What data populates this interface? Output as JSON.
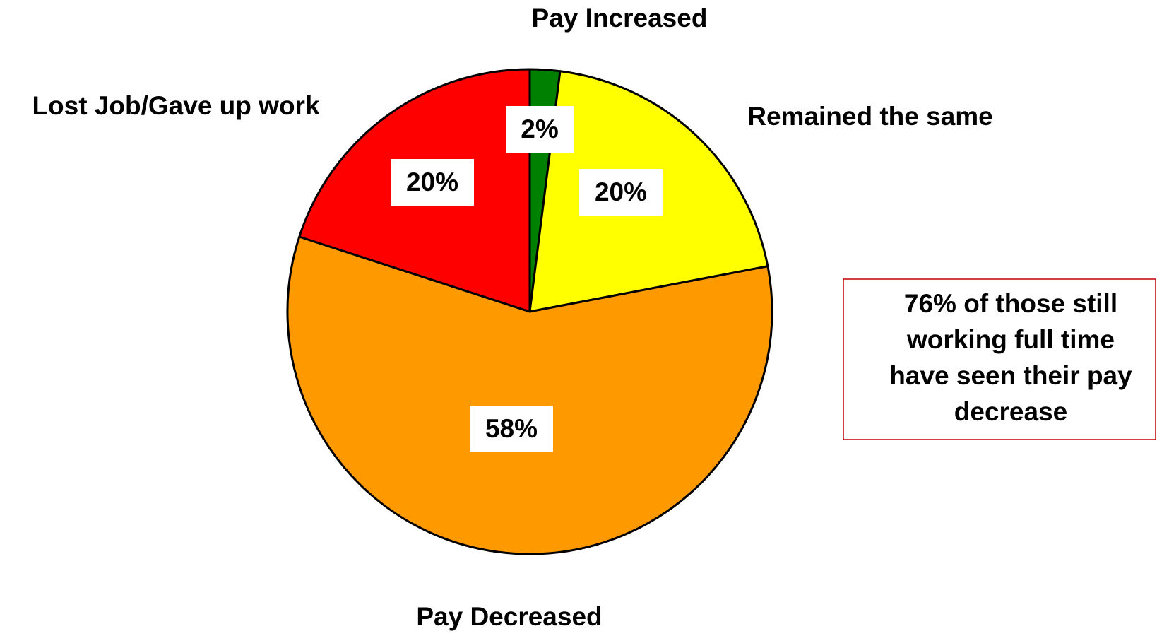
{
  "chart_data": {
    "type": "pie",
    "categories": [
      "Pay Increased",
      "Remained the same",
      "Pay Decreased",
      "Lost Job/Gave up work"
    ],
    "values": [
      2,
      20,
      58,
      20
    ],
    "value_labels": [
      "2%",
      "20%",
      "58%",
      "20%"
    ],
    "colors": [
      "#008000",
      "#ffff00",
      "#ff9900",
      "#ff0000"
    ],
    "annotation": [
      "76% of those still",
      "working full time",
      "have seen their pay",
      "decrease"
    ]
  }
}
